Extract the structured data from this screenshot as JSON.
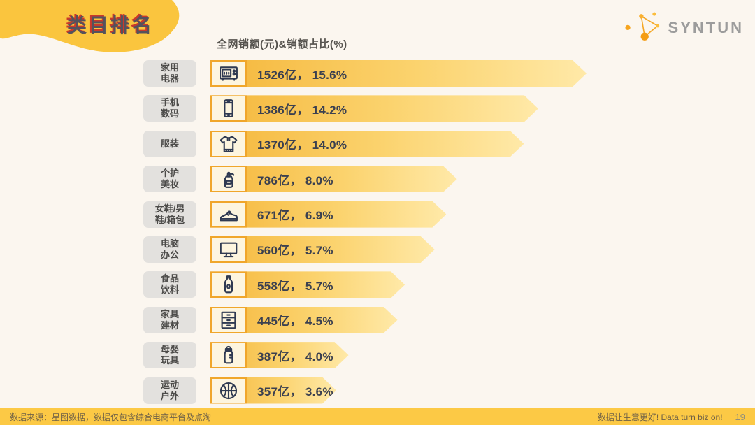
{
  "page": {
    "title": "类目排名",
    "chart_header": "全网销额(元)&销额占比(%)",
    "logo_text": "SYNTUN",
    "footer_left": "数据来源：星图数据，数据仅包含综合电商平台及点淘",
    "footer_right_slogan": "数据让生意更好! Data turn biz on!",
    "page_number": "19"
  },
  "colors": {
    "background": "#FBF6EF",
    "brand_yellow": "#FAC53E",
    "bar_gradient_start": "#F5B73C",
    "bar_gradient_end": "#FFE9A8",
    "icon_box_bg": "#FDF5DF",
    "icon_box_border": "#F0A62B",
    "icon_glyph": "#2F3A52",
    "value_text": "#3B4050",
    "chip_bg": "#E3E1DE",
    "chip_text": "#4C4B49",
    "title_text": "#55525C",
    "title_shadow_red": "#C9392B",
    "footer_bg": "#FCC945",
    "footer_text": "#6F6147",
    "logo_gray": "#9C9C9C",
    "logo_orange": "#F5A623"
  },
  "chart_data": {
    "type": "bar",
    "title": "全网销额(元)&销额占比(%)",
    "orientation": "horizontal",
    "axis": "none (values labeled directly on bars)",
    "legend_position": "none",
    "categories": [
      "家用电器",
      "手机数码",
      "服装",
      "个护美妆",
      "女鞋/男鞋/箱包",
      "电脑办公",
      "食品饮料",
      "家具建材",
      "母婴玩具",
      "运动户外"
    ],
    "series": [
      {
        "name": "全网销额(亿元)",
        "values": [
          1526,
          1386,
          1370,
          786,
          671,
          560,
          558,
          445,
          387,
          357
        ]
      },
      {
        "name": "销额占比(%)",
        "values": [
          15.6,
          14.2,
          14.0,
          8.0,
          6.9,
          5.7,
          5.7,
          4.5,
          4.0,
          3.6
        ]
      }
    ],
    "rows": [
      {
        "category": "家用电器",
        "label_lines": [
          "家用",
          "电器"
        ],
        "value_text": "1526亿， 15.6%",
        "sales_billion": 1526,
        "share_pct": 15.6,
        "icon": "microwave-icon",
        "bar_width_pct": 70.8
      },
      {
        "category": "手机数码",
        "label_lines": [
          "手机",
          "数码"
        ],
        "value_text": "1386亿， 14.2%",
        "sales_billion": 1386,
        "share_pct": 14.2,
        "icon": "smartphone-icon",
        "bar_width_pct": 61.7
      },
      {
        "category": "服装",
        "label_lines": [
          "服装"
        ],
        "value_text": "1370亿， 14.0%",
        "sales_billion": 1370,
        "share_pct": 14.0,
        "icon": "sweater-icon",
        "bar_width_pct": 59.0
      },
      {
        "category": "个护美妆",
        "label_lines": [
          "个护",
          "美妆"
        ],
        "value_text": "786亿， 8.0%",
        "sales_billion": 786,
        "share_pct": 8.0,
        "icon": "lotion-bottle-icon",
        "bar_width_pct": 46.4
      },
      {
        "category": "女鞋/男鞋/箱包",
        "label_lines": [
          "女鞋/男",
          "鞋/箱包"
        ],
        "value_text": "671亿， 6.9%",
        "sales_billion": 671,
        "share_pct": 6.9,
        "icon": "sneaker-icon",
        "bar_width_pct": 44.4
      },
      {
        "category": "电脑办公",
        "label_lines": [
          "电脑",
          "办公"
        ],
        "value_text": "560亿， 5.7%",
        "sales_billion": 560,
        "share_pct": 5.7,
        "icon": "monitor-icon",
        "bar_width_pct": 42.2
      },
      {
        "category": "食品饮料",
        "label_lines": [
          "食品",
          "饮料"
        ],
        "value_text": "558亿， 5.7%",
        "sales_billion": 558,
        "share_pct": 5.7,
        "icon": "drink-bottle-icon",
        "bar_width_pct": 36.6
      },
      {
        "category": "家具建材",
        "label_lines": [
          "家具",
          "建材"
        ],
        "value_text": "445亿， 4.5%",
        "sales_billion": 445,
        "share_pct": 4.5,
        "icon": "drawer-cabinet-icon",
        "bar_width_pct": 35.2
      },
      {
        "category": "母婴玩具",
        "label_lines": [
          "母婴",
          "玩具"
        ],
        "value_text": "387亿， 4.0%",
        "sales_billion": 387,
        "share_pct": 4.0,
        "icon": "baby-bottle-icon",
        "bar_width_pct": 26.0
      },
      {
        "category": "运动户外",
        "label_lines": [
          "运动",
          "户外"
        ],
        "value_text": "357亿， 3.6%",
        "sales_billion": 357,
        "share_pct": 3.6,
        "icon": "basketball-icon",
        "bar_width_pct": 23.7
      }
    ]
  }
}
